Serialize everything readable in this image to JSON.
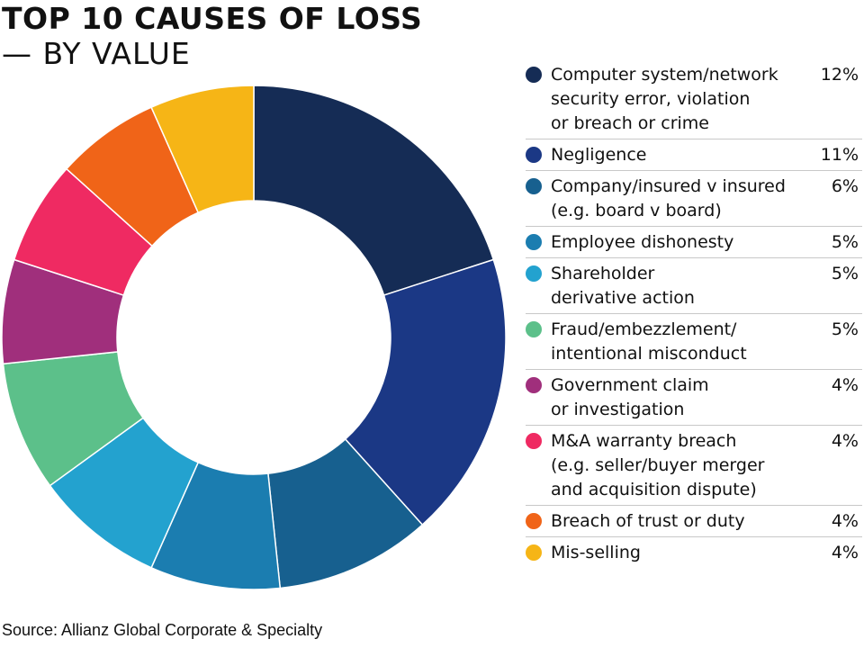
{
  "title_line1": "TOP 10 CAUSES OF LOSS",
  "title_line2": "— BY VALUE",
  "source": "Source: Allianz Global Corporate & Specialty",
  "chart_data": {
    "type": "pie",
    "title": "TOP 10 CAUSES OF LOSS — BY VALUE",
    "legend_placement": "right",
    "slices": [
      {
        "label": "Computer system/network\nsecurity error, violation\nor breach or crime",
        "value": 12,
        "display": "12%",
        "color": "#152c55"
      },
      {
        "label": "Negligence",
        "value": 11,
        "display": "11%",
        "color": "#1b3885"
      },
      {
        "label": "Company/insured v insured\n(e.g. board v board)",
        "value": 6,
        "display": "6%",
        "color": "#17608f"
      },
      {
        "label": "Employee dishonesty",
        "value": 5,
        "display": "5%",
        "color": "#1b7db0"
      },
      {
        "label": "Shareholder\nderivative action",
        "value": 5,
        "display": "5%",
        "color": "#23a2cf"
      },
      {
        "label": "Fraud/embezzlement/\nintentional misconduct",
        "value": 5,
        "display": "5%",
        "color": "#5cc08a"
      },
      {
        "label": "Government claim\nor investigation",
        "value": 4,
        "display": "4%",
        "color": "#a02f7c"
      },
      {
        "label": "M&A warranty breach\n(e.g. seller/buyer merger\nand acquisition dispute)",
        "value": 4,
        "display": "4%",
        "color": "#ef2a62"
      },
      {
        "label": "Breach of trust or duty",
        "value": 4,
        "display": "4%",
        "color": "#f06418"
      },
      {
        "label": "Mis-selling",
        "value": 4,
        "display": "4%",
        "color": "#f6b516"
      }
    ]
  }
}
